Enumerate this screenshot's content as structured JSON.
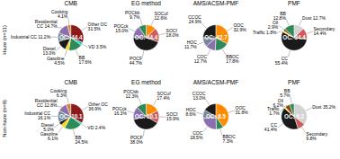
{
  "chart_data": [
    {
      "type": "pie",
      "title": "CMB",
      "row_label": "Haze (n=11)",
      "categories": [
        "Other OC\n31.5%",
        "VD 3.5%",
        "BB\n17.6%",
        "Gasoline\n4.5%",
        "Diesel\n13.0%",
        "Industrial CC 11.2%",
        "Residential\nCC 14.7%",
        "Cooking\n4.1%"
      ],
      "values": [
        31.5,
        3.5,
        17.6,
        4.5,
        13.0,
        11.2,
        14.7,
        4.1
      ],
      "colors": [
        "#8b1a1a",
        "#00ced1",
        "#2e8b57",
        "#ffd700",
        "#1a1a1a",
        "#778899",
        "#8b6fae",
        "#cd853f"
      ],
      "annotation": "OC: 44.4"
    },
    {
      "type": "pie",
      "title": "EG method",
      "categories": [
        "SOCuf\n12.6%",
        "SOCf\n18.0%",
        "POCF\n44.7%",
        "POCck\n15.0%",
        "POCbb\n9.7%"
      ],
      "values": [
        12.6,
        18.0,
        44.7,
        15.0,
        9.7
      ],
      "colors": [
        "#ff8c00",
        "#cd5c5c",
        "#1a1a1a",
        "#8b6fae",
        "#2e8b57"
      ],
      "annotation": "OC: 44.4"
    },
    {
      "type": "pie",
      "title": "AMS/ACSM-PMF",
      "categories": [
        "OOC\n32.9%",
        "BBOC\n17.8%",
        "COC\n12.7%",
        "HOC\n11.7%",
        "CCOC\n24.9%"
      ],
      "values": [
        32.9,
        17.8,
        12.7,
        11.7,
        24.9
      ],
      "colors": [
        "#ff8c00",
        "#2e8b57",
        "#8b6fae",
        "#778899",
        "#1a1a1a"
      ],
      "annotation": "OC: 42.7"
    },
    {
      "type": "pie",
      "title": "PMF",
      "categories": [
        "Dust 12.7%",
        "Secondary\n14.4%",
        "CC\n55.4%",
        "Traffic 1.8%",
        "Oil\n2.9%",
        "BB\n12.8%"
      ],
      "values": [
        12.7,
        14.4,
        55.4,
        1.8,
        2.9,
        12.8
      ],
      "colors": [
        "#d3d3d3",
        "#cd5c5c",
        "#1a1a1a",
        "#ffd700",
        "#8b4513",
        "#2e8b57"
      ],
      "annotation": "OC: 34.4"
    },
    {
      "type": "pie",
      "title": "CMB",
      "row_label": "Non-haze (n=9)",
      "categories": [
        "Other OC\n36.9%",
        "VD 2.4%",
        "BB\n24.5%",
        "Gasoline\n6.1%",
        "Diesel\n5.0%",
        "Industrial CC\n16.1%",
        "Residential\nCC 12.8%",
        "Cooking\n6.3%"
      ],
      "values": [
        36.9,
        2.4,
        24.5,
        6.1,
        5.0,
        16.1,
        12.8,
        6.3
      ],
      "colors": [
        "#8b1a1a",
        "#00ced1",
        "#2e8b57",
        "#ffd700",
        "#1a1a1a",
        "#778899",
        "#8b6fae",
        "#cd853f"
      ],
      "annotation": "OC: 10.1"
    },
    {
      "type": "pie",
      "title": "EG method",
      "categories": [
        "SOCuf\n17.4%",
        "SOCf\n15.9%",
        "POCF\n38.0%",
        "POCck\n16.3%",
        "POCbb\n12.3%"
      ],
      "values": [
        17.4,
        15.9,
        38.0,
        16.3,
        12.3
      ],
      "colors": [
        "#ff8c00",
        "#cd5c5c",
        "#1a1a1a",
        "#8b6fae",
        "#2e8b57"
      ],
      "annotation": "OC: 10.1"
    },
    {
      "type": "pie",
      "title": "AMS/ACSM-PMF",
      "categories": [
        "OOC\n31.8%",
        "BBOC\n7.3%",
        "COC\n18.5%",
        "HOC\n8.6%",
        "CCOC\n13.0%"
      ],
      "values": [
        31.8,
        7.3,
        18.5,
        8.6,
        13.0
      ],
      "colors": [
        "#ff8c00",
        "#2e8b57",
        "#8b6fae",
        "#778899",
        "#1a1a1a"
      ],
      "annotation": "OC: 8.5"
    },
    {
      "type": "pie",
      "title": "PMF",
      "categories": [
        "Dust 35.2%",
        "Secondary\n9.8%",
        "CC\n41.4%",
        "Traffic\n1.7%",
        "Oil\n6.2%",
        "BB\n5.7%"
      ],
      "values": [
        35.2,
        9.8,
        41.4,
        1.7,
        6.2,
        5.7
      ],
      "colors": [
        "#d3d3d3",
        "#cd5c5c",
        "#1a1a1a",
        "#ffd700",
        "#8b4513",
        "#2e8b57"
      ],
      "annotation": "OC: 9.2"
    }
  ]
}
